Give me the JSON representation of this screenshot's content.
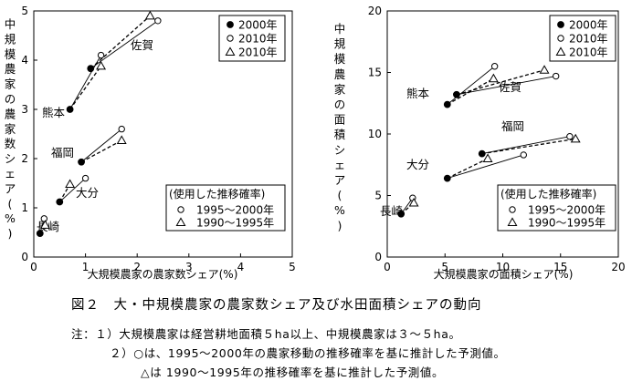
{
  "chart_data": [
    {
      "type": "scatter",
      "title": "",
      "xlabel": "大規模農家の農家数シェア(%)",
      "ylabel": "中規模農家の農家数シェア(%)",
      "xlim": [
        0,
        5
      ],
      "ylim": [
        0,
        5
      ],
      "xticks": [
        "0",
        "1",
        "2",
        "3",
        "4",
        "5"
      ],
      "yticks": [
        "0",
        "1",
        "2",
        "3",
        "4",
        "5"
      ],
      "legend": {
        "placement": "top-right",
        "entries": [
          {
            "marker": "filled-circle",
            "label": "2000年"
          },
          {
            "marker": "open-circle",
            "label": "2010年"
          },
          {
            "marker": "open-triangle",
            "label": "2010年"
          }
        ]
      },
      "legend2": {
        "placement": "bottom-right",
        "title": "(使用した推移確率)",
        "entries": [
          {
            "marker": "open-circle",
            "label": "1995～2000年"
          },
          {
            "marker": "open-triangle",
            "label": "1990～1995年"
          }
        ]
      },
      "series": [
        {
          "name": "2000年",
          "marker": "filled-circle",
          "points": [
            [
              0.12,
              0.48
            ],
            [
              0.5,
              1.12
            ],
            [
              0.92,
              1.93
            ],
            [
              0.7,
              3.0
            ],
            [
              1.1,
              3.83
            ]
          ]
        },
        {
          "name": "2010年",
          "marker": "open-circle",
          "points": [
            [
              0.2,
              0.78
            ],
            [
              1.0,
              1.6
            ],
            [
              1.7,
              2.6
            ],
            [
              1.3,
              4.1
            ],
            [
              2.4,
              4.8
            ]
          ]
        },
        {
          "name": "2010年",
          "marker": "open-triangle",
          "points": [
            [
              0.22,
              0.65
            ],
            [
              0.7,
              1.48
            ],
            [
              1.7,
              2.37
            ],
            [
              1.3,
              3.88
            ],
            [
              2.25,
              4.9
            ]
          ]
        }
      ],
      "groups": [
        {
          "label": "長崎",
          "from": [
            0.12,
            0.48
          ],
          "to_circle": [
            0.2,
            0.78
          ],
          "to_triangle": [
            0.22,
            0.65
          ]
        },
        {
          "label": "大分",
          "from": [
            0.5,
            1.12
          ],
          "to_circle": [
            1.0,
            1.6
          ],
          "to_triangle": [
            0.7,
            1.48
          ]
        },
        {
          "label": "福岡",
          "from": [
            0.92,
            1.93
          ],
          "to_circle": [
            1.7,
            2.6
          ],
          "to_triangle": [
            1.7,
            2.37
          ]
        },
        {
          "label": "熊本",
          "from": [
            0.7,
            3.0
          ],
          "to_circle": [
            1.3,
            4.1
          ],
          "to_triangle": [
            1.3,
            3.88
          ]
        },
        {
          "label": "佐賀",
          "from": [
            1.1,
            3.83
          ],
          "to_circle": [
            2.4,
            4.8
          ],
          "to_triangle": [
            2.25,
            4.9
          ]
        }
      ]
    },
    {
      "type": "scatter",
      "title": "",
      "xlabel": "大規模農家の面積シェア(%)",
      "ylabel": "中規模農家の面積シェア(%)",
      "xlim": [
        0,
        20
      ],
      "ylim": [
        0,
        20
      ],
      "xticks": [
        "0",
        "5",
        "10",
        "15",
        "20"
      ],
      "yticks": [
        "0",
        "5",
        "10",
        "15",
        "20"
      ],
      "legend": {
        "placement": "top-right",
        "entries": [
          {
            "marker": "filled-circle",
            "label": "2000年"
          },
          {
            "marker": "open-circle",
            "label": "2010年"
          },
          {
            "marker": "open-triangle",
            "label": "2010年"
          }
        ]
      },
      "legend2": {
        "placement": "bottom-right",
        "title": "(使用した推移確率)",
        "entries": [
          {
            "marker": "open-circle",
            "label": "1995～2000年"
          },
          {
            "marker": "open-triangle",
            "label": "1990～1995年"
          }
        ]
      },
      "series": [
        {
          "name": "2000年",
          "marker": "filled-circle",
          "points": [
            [
              1.2,
              3.5
            ],
            [
              5.2,
              6.4
            ],
            [
              8.2,
              8.4
            ],
            [
              5.2,
              12.4
            ],
            [
              6.0,
              13.2
            ]
          ]
        },
        {
          "name": "2010年",
          "marker": "open-circle",
          "points": [
            [
              2.2,
              4.8
            ],
            [
              11.8,
              8.3
            ],
            [
              15.8,
              9.8
            ],
            [
              9.3,
              15.5
            ],
            [
              14.6,
              14.7
            ]
          ]
        },
        {
          "name": "2010年",
          "marker": "open-triangle",
          "points": [
            [
              2.3,
              4.4
            ],
            [
              8.7,
              8.0
            ],
            [
              16.3,
              9.6
            ],
            [
              9.2,
              14.5
            ],
            [
              13.6,
              15.2
            ]
          ]
        }
      ],
      "groups": [
        {
          "label": "長崎",
          "from": [
            1.2,
            3.5
          ],
          "to_circle": [
            2.2,
            4.8
          ],
          "to_triangle": [
            2.3,
            4.4
          ]
        },
        {
          "label": "大分",
          "from": [
            5.2,
            6.4
          ],
          "to_circle": [
            11.8,
            8.3
          ],
          "to_triangle": [
            8.7,
            8.0
          ]
        },
        {
          "label": "福岡",
          "from": [
            8.2,
            8.4
          ],
          "to_circle": [
            15.8,
            9.8
          ],
          "to_triangle": [
            16.3,
            9.6
          ]
        },
        {
          "label": "熊本",
          "from": [
            5.2,
            12.4
          ],
          "to_circle": [
            9.3,
            15.5
          ],
          "to_triangle": [
            9.2,
            14.5
          ]
        },
        {
          "label": "佐賀",
          "from": [
            6.0,
            13.2
          ],
          "to_circle": [
            14.6,
            14.7
          ],
          "to_triangle": [
            13.6,
            15.2
          ]
        }
      ]
    }
  ],
  "caption": {
    "title": "図２　大・中規模農家の農家数シェア及び水田面積シェアの動向",
    "notes": [
      "注：１）大規模農家は経営耕地面積５ha以上、中規模農家は３～５ha。",
      "２）○は、1995～2000年の農家移動の推移確率を基に推計した予測値。",
      "△は 1990～1995年の推移確率を基に推計した予測値。"
    ]
  }
}
